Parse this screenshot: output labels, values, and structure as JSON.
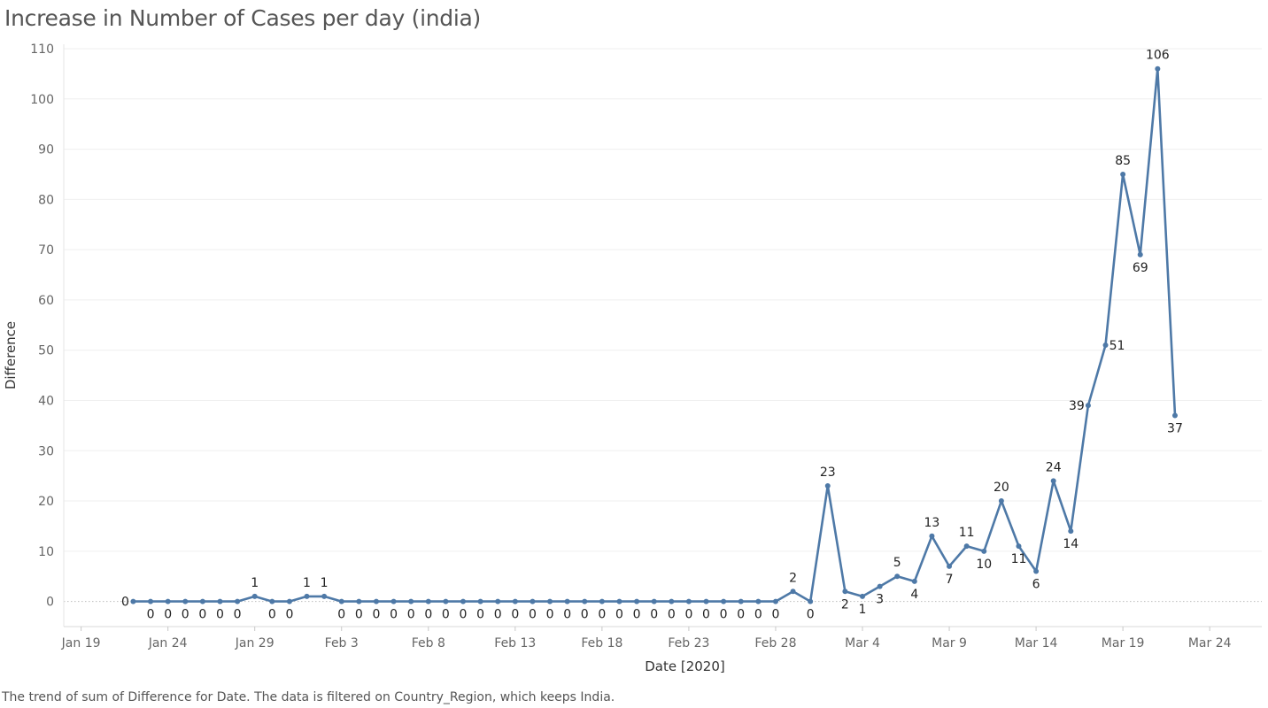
{
  "title": "Increase in Number of Cases per day (india)",
  "caption": "The trend of sum of Difference for Date. The data is filtered on Country_Region, which keeps India.",
  "chart_data": {
    "type": "line",
    "title": "Increase in Number of Cases per day (india)",
    "xlabel": "Date [2020]",
    "ylabel": "Difference",
    "x_start": "2020-01-22",
    "x_range": [
      "2020-01-18",
      "2020-03-27"
    ],
    "ylim": [
      -5,
      110
    ],
    "yticks": [
      0,
      10,
      20,
      30,
      40,
      50,
      60,
      70,
      80,
      90,
      100,
      110
    ],
    "xticks": [
      "Jan 19",
      "Jan 24",
      "Jan 29",
      "Feb 3",
      "Feb 8",
      "Feb 13",
      "Feb 18",
      "Feb 23",
      "Feb 28",
      "Mar 4",
      "Mar 9",
      "Mar 14",
      "Mar 19",
      "Mar 24"
    ],
    "grid": true,
    "line_color": "#4e79a7",
    "series": [
      {
        "values": [
          0,
          0,
          0,
          0,
          0,
          0,
          0,
          1,
          0,
          0,
          1,
          1,
          0,
          0,
          0,
          0,
          0,
          0,
          0,
          0,
          0,
          0,
          0,
          0,
          0,
          0,
          0,
          0,
          0,
          0,
          0,
          0,
          0,
          0,
          0,
          0,
          0,
          0,
          2,
          0,
          23,
          2,
          1,
          3,
          5,
          4,
          13,
          7,
          11,
          10,
          20,
          11,
          6,
          24,
          14,
          39,
          51,
          85,
          69,
          106,
          37
        ]
      }
    ]
  }
}
